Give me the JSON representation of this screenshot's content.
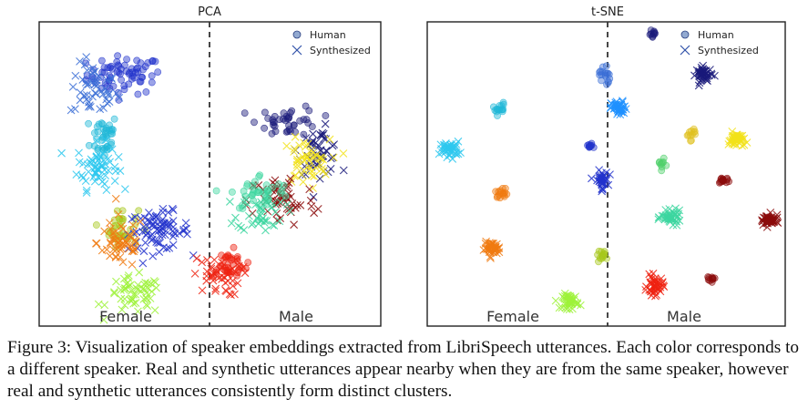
{
  "panels": [
    {
      "title": "PCA",
      "left_label": "Female",
      "right_label": "Male",
      "legend": {
        "human": "Human",
        "synthesized": "Synthesized"
      }
    },
    {
      "title": "t-SNE",
      "left_label": "Female",
      "right_label": "Male",
      "legend": {
        "human": "Human",
        "synthesized": "Synthesized"
      }
    }
  ],
  "caption": "Figure 3: Visualization of speaker embeddings extracted from LibriSpeech utterances. Each color corresponds to a different speaker. Real and synthetic utterances appear nearby when they are from the same speaker, however real and synthetic utterances consistently form distinct clusters.",
  "colors": {
    "navy": "#1a1a7a",
    "blue": "#2233cc",
    "royal": "#3b6fd6",
    "azure": "#1e90ff",
    "cyan": "#20b8d8",
    "sky": "#2ec8ee",
    "mint": "#3dd6a0",
    "green": "#4fd06a",
    "lime": "#9ef23a",
    "olive": "#a6c71a",
    "yellow": "#f2e21a",
    "gold": "#e0c020",
    "orange": "#f07a10",
    "red": "#ee2211",
    "darkred": "#8b0a0a",
    "purple": "#5a3fa0"
  },
  "chart_data": [
    {
      "type": "scatter",
      "title": "PCA",
      "groups": [
        "Female",
        "Male"
      ],
      "series_markers": {
        "Human": "circle",
        "Synthesized": "x"
      },
      "clusters": [
        {
          "color": "blue",
          "kind": "human",
          "cx": -2.5,
          "cy": 2.6,
          "sx": 0.55,
          "sy": 0.25,
          "n": 70
        },
        {
          "color": "royal",
          "kind": "synth",
          "cx": -3.4,
          "cy": 2.2,
          "sx": 0.35,
          "sy": 0.35,
          "n": 50
        },
        {
          "color": "cyan",
          "kind": "human",
          "cx": -3.1,
          "cy": 1.0,
          "sx": 0.2,
          "sy": 0.3,
          "n": 40
        },
        {
          "color": "sky",
          "kind": "synth",
          "cx": -3.3,
          "cy": 0.2,
          "sx": 0.3,
          "sy": 0.3,
          "n": 60
        },
        {
          "color": "olive",
          "kind": "human",
          "cx": -2.6,
          "cy": -1.4,
          "sx": 0.25,
          "sy": 0.25,
          "n": 35
        },
        {
          "color": "blue",
          "kind": "synth",
          "cx": -1.5,
          "cy": -1.5,
          "sx": 0.45,
          "sy": 0.25,
          "n": 80
        },
        {
          "color": "orange",
          "kind": "synth",
          "cx": -2.6,
          "cy": -1.8,
          "sx": 0.35,
          "sy": 0.35,
          "n": 55
        },
        {
          "color": "lime",
          "kind": "synth",
          "cx": -2.2,
          "cy": -3.2,
          "sx": 0.4,
          "sy": 0.25,
          "n": 55
        },
        {
          "color": "navy",
          "kind": "human",
          "cx": 2.3,
          "cy": 1.4,
          "sx": 0.45,
          "sy": 0.2,
          "n": 40
        },
        {
          "color": "navy",
          "kind": "synth",
          "cx": 3.2,
          "cy": 0.6,
          "sx": 0.3,
          "sy": 0.3,
          "n": 50
        },
        {
          "color": "yellow",
          "kind": "synth",
          "cx": 2.8,
          "cy": 0.3,
          "sx": 0.35,
          "sy": 0.3,
          "n": 50
        },
        {
          "color": "darkred",
          "kind": "synth",
          "cx": 2.1,
          "cy": -0.7,
          "sx": 0.5,
          "sy": 0.35,
          "n": 60
        },
        {
          "color": "mint",
          "kind": "human",
          "cx": 1.5,
          "cy": -0.5,
          "sx": 0.45,
          "sy": 0.25,
          "n": 40
        },
        {
          "color": "mint",
          "kind": "synth",
          "cx": 1.5,
          "cy": -1.0,
          "sx": 0.35,
          "sy": 0.25,
          "n": 40
        },
        {
          "color": "red",
          "kind": "human",
          "cx": 0.5,
          "cy": -2.4,
          "sx": 0.3,
          "sy": 0.2,
          "n": 35
        },
        {
          "color": "red",
          "kind": "synth",
          "cx": 0.2,
          "cy": -2.7,
          "sx": 0.35,
          "sy": 0.25,
          "n": 45
        }
      ],
      "xlim": [
        -5,
        5
      ],
      "ylim": [
        -4,
        4
      ]
    },
    {
      "type": "scatter",
      "title": "t-SNE",
      "groups": [
        "Female",
        "Male"
      ],
      "series_markers": {
        "Human": "circle",
        "Synthesized": "x"
      },
      "clusters": [
        {
          "color": "royal",
          "kind": "human",
          "cx": 0.45,
          "cy": 3.7,
          "sx": 0.08,
          "sy": 0.2,
          "n": 18
        },
        {
          "color": "cyan",
          "kind": "human",
          "cx": -2.8,
          "cy": 2.6,
          "sx": 0.1,
          "sy": 0.1,
          "n": 16
        },
        {
          "color": "azure",
          "kind": "synth",
          "cx": 0.9,
          "cy": 2.6,
          "sx": 0.12,
          "sy": 0.12,
          "n": 45
        },
        {
          "color": "blue",
          "kind": "human",
          "cx": 0.0,
          "cy": 1.4,
          "sx": 0.05,
          "sy": 0.05,
          "n": 10
        },
        {
          "color": "sky",
          "kind": "synth",
          "cx": -4.3,
          "cy": 1.3,
          "sx": 0.15,
          "sy": 0.12,
          "n": 50
        },
        {
          "color": "orange",
          "kind": "human",
          "cx": -2.7,
          "cy": -0.1,
          "sx": 0.1,
          "sy": 0.08,
          "n": 16
        },
        {
          "color": "blue",
          "kind": "synth",
          "cx": 0.35,
          "cy": 0.3,
          "sx": 0.1,
          "sy": 0.15,
          "n": 40
        },
        {
          "color": "orange",
          "kind": "synth",
          "cx": -3.0,
          "cy": -1.9,
          "sx": 0.12,
          "sy": 0.1,
          "n": 45
        },
        {
          "color": "olive",
          "kind": "human",
          "cx": 0.4,
          "cy": -2.1,
          "sx": 0.1,
          "sy": 0.08,
          "n": 14
        },
        {
          "color": "lime",
          "kind": "synth",
          "cx": -0.6,
          "cy": -3.6,
          "sx": 0.12,
          "sy": 0.12,
          "n": 45
        },
        {
          "color": "navy",
          "kind": "human",
          "cx": 1.9,
          "cy": 5.0,
          "sx": 0.06,
          "sy": 0.06,
          "n": 10
        },
        {
          "color": "navy",
          "kind": "synth",
          "cx": 3.5,
          "cy": 3.7,
          "sx": 0.12,
          "sy": 0.12,
          "n": 50
        },
        {
          "color": "gold",
          "kind": "human",
          "cx": 3.1,
          "cy": 1.8,
          "sx": 0.08,
          "sy": 0.1,
          "n": 12
        },
        {
          "color": "yellow",
          "kind": "synth",
          "cx": 4.5,
          "cy": 1.6,
          "sx": 0.12,
          "sy": 0.12,
          "n": 45
        },
        {
          "color": "green",
          "kind": "human",
          "cx": 2.2,
          "cy": 0.8,
          "sx": 0.06,
          "sy": 0.08,
          "n": 10
        },
        {
          "color": "darkred",
          "kind": "human",
          "cx": 4.1,
          "cy": 0.3,
          "sx": 0.1,
          "sy": 0.06,
          "n": 14
        },
        {
          "color": "mint",
          "kind": "synth",
          "cx": 2.5,
          "cy": -0.9,
          "sx": 0.15,
          "sy": 0.1,
          "n": 50
        },
        {
          "color": "darkred",
          "kind": "synth",
          "cx": 5.5,
          "cy": -1.0,
          "sx": 0.15,
          "sy": 0.1,
          "n": 50
        },
        {
          "color": "red",
          "kind": "synth",
          "cx": 2.0,
          "cy": -3.1,
          "sx": 0.12,
          "sy": 0.15,
          "n": 45
        },
        {
          "color": "darkred",
          "kind": "human",
          "cx": 3.7,
          "cy": -2.9,
          "sx": 0.06,
          "sy": 0.05,
          "n": 10
        }
      ],
      "xlim": [
        -5,
        6
      ],
      "ylim": [
        -4.4,
        5.4
      ]
    }
  ]
}
